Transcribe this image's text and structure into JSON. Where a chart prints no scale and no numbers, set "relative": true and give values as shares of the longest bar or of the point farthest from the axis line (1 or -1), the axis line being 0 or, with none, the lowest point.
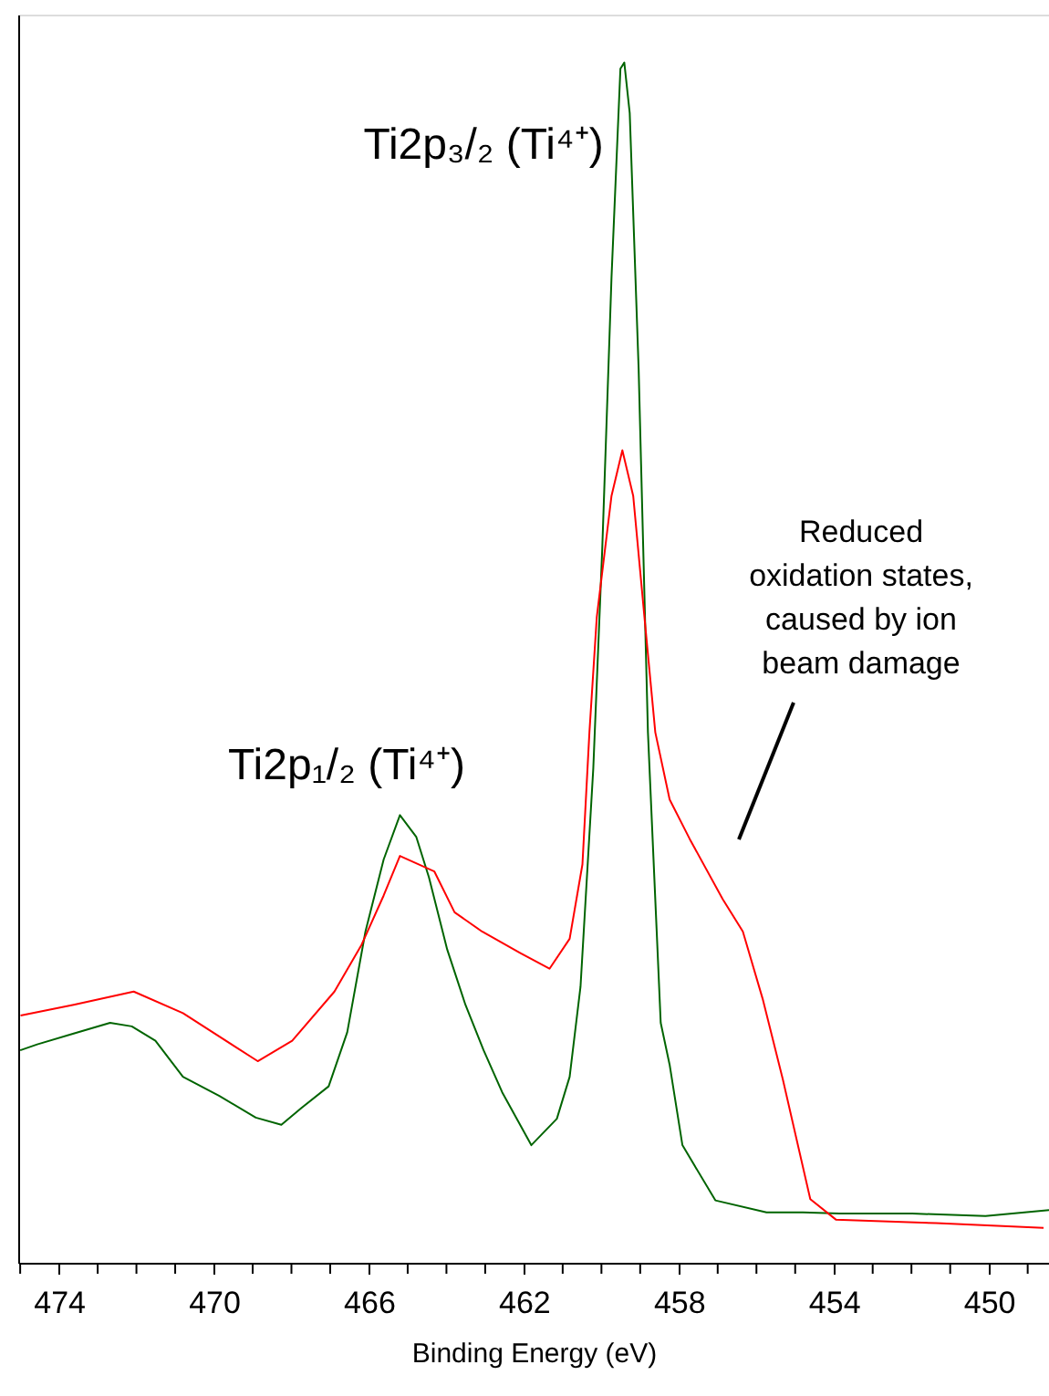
{
  "chart_data": {
    "type": "line",
    "relative": true,
    "xlabel": "Binding Energy (eV)",
    "xlim": [
      475.05,
      448.45
    ],
    "xticks": [
      {
        "value": 475,
        "label": null
      },
      474,
      {
        "value": 473,
        "label": null
      },
      {
        "value": 472,
        "label": null
      },
      {
        "value": 471,
        "label": null
      },
      470,
      {
        "value": 469,
        "label": null
      },
      {
        "value": 468,
        "label": null
      },
      {
        "value": 467,
        "label": null
      },
      466,
      {
        "value": 465,
        "label": null
      },
      {
        "value": 464,
        "label": null
      },
      {
        "value": 463,
        "label": null
      },
      462,
      {
        "value": 461,
        "label": null
      },
      {
        "value": 460,
        "label": null
      },
      {
        "value": 459,
        "label": null
      },
      458,
      {
        "value": 457,
        "label": null
      },
      {
        "value": 456,
        "label": null
      },
      {
        "value": 455,
        "label": null
      },
      454,
      {
        "value": 453,
        "label": null
      },
      {
        "value": 452,
        "label": null
      },
      {
        "value": 451,
        "label": null
      },
      450,
      {
        "value": 449,
        "label": null
      }
    ],
    "grid": false,
    "legend": false,
    "tick_labels": "x",
    "series": [
      {
        "color": "#006400",
        "x": [
          475.0,
          474.56,
          473.62,
          472.68,
          472.12,
          471.51,
          470.8,
          469.86,
          468.92,
          468.26,
          467.74,
          467.04,
          466.56,
          466.09,
          465.62,
          465.2,
          464.78,
          464.45,
          463.98,
          463.51,
          463.04,
          462.56,
          461.81,
          461.15,
          460.82,
          460.54,
          460.21,
          459.98,
          459.74,
          459.51,
          459.41,
          459.27,
          459.04,
          458.8,
          458.47,
          458.24,
          457.91,
          457.06,
          455.74,
          454.8,
          453.86,
          451.98,
          450.09,
          448.45
        ],
        "values": [
          0.177,
          0.182,
          0.191,
          0.2,
          0.197,
          0.185,
          0.155,
          0.139,
          0.121,
          0.115,
          0.129,
          0.147,
          0.192,
          0.276,
          0.336,
          0.373,
          0.355,
          0.321,
          0.261,
          0.215,
          0.177,
          0.142,
          0.098,
          0.12,
          0.155,
          0.23,
          0.412,
          0.594,
          0.821,
          0.995,
          1.0,
          0.958,
          0.745,
          0.442,
          0.2,
          0.165,
          0.098,
          0.052,
          0.042,
          0.042,
          0.041,
          0.041,
          0.039,
          0.044
        ]
      },
      {
        "color": "#ff0000",
        "x": [
          474.99,
          473.62,
          472.07,
          470.8,
          468.87,
          467.98,
          466.89,
          466.19,
          465.62,
          465.2,
          464.31,
          463.79,
          463.08,
          462.09,
          461.34,
          460.82,
          460.49,
          460.31,
          460.12,
          459.74,
          459.46,
          459.18,
          458.89,
          458.61,
          458.24,
          457.72,
          456.87,
          456.35,
          455.84,
          455.32,
          454.61,
          453.95,
          451.36,
          448.59
        ],
        "values": [
          0.206,
          0.215,
          0.226,
          0.208,
          0.168,
          0.185,
          0.226,
          0.265,
          0.306,
          0.339,
          0.326,
          0.292,
          0.276,
          0.258,
          0.245,
          0.27,
          0.332,
          0.442,
          0.538,
          0.639,
          0.677,
          0.639,
          0.538,
          0.442,
          0.386,
          0.353,
          0.303,
          0.276,
          0.22,
          0.153,
          0.053,
          0.036,
          0.033,
          0.029
        ]
      }
    ],
    "annotations": [
      "Ti2p₃/₂ (Ti⁴⁺)",
      "Ti2p₁/₂ (Ti⁴⁺)",
      "Reduced oxidation states, caused by ion beam damage"
    ]
  }
}
